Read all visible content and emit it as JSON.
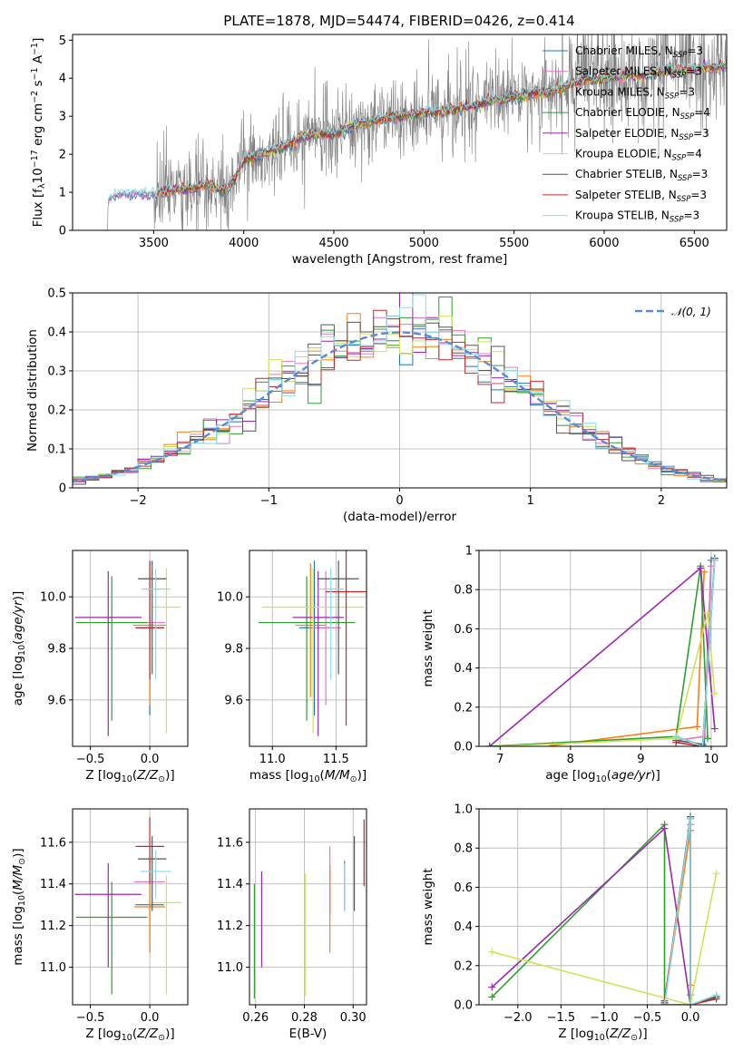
{
  "colors": {
    "Chabrier MILES": "#1f77b4",
    "Salpeter MILES": "#e377c2",
    "Kroupa MILES": "#ff7f0e",
    "Chabrier ELODIE": "#2ca02c",
    "Salpeter ELODIE": "#9c27b0",
    "Kroupa ELODIE": "#d4e157",
    "Chabrier STELIB": "#555555",
    "Salpeter STELIB": "#c62828",
    "Kroupa STELIB": "#80deea",
    "spectrum": "#808080",
    "gaussian": "#5b8bd6",
    "grid": "#b0b0b0"
  },
  "chart_data": [
    {
      "id": "spectrum",
      "type": "line",
      "title": "PLATE=1878, MJD=54474, FIBERID=0426, z=0.414",
      "xlabel": "wavelength [Angstrom, rest frame]",
      "ylabel": "Flux [fλ10⁻¹⁷ erg cm⁻² s⁻¹ A⁻¹]",
      "xlim": [
        3050,
        6680
      ],
      "ylim": [
        0,
        5.15
      ],
      "xticks": [
        3500,
        4000,
        4500,
        5000,
        5500,
        6000,
        6500
      ],
      "yticks": [
        0,
        1,
        2,
        3,
        4,
        5
      ],
      "grid": false,
      "legend_position": "top-right",
      "legend": [
        {
          "name": "Chabrier MILES, N_SSP=3",
          "text": "Chabrier MILES, N",
          "sub": "SSP",
          "tail": "=3"
        },
        {
          "name": "Salpeter MILES, N_SSP=3",
          "text": "Salpeter MILES, N",
          "sub": "SSP",
          "tail": "=3"
        },
        {
          "name": "Kroupa MILES, N_SSP=3",
          "text": "Kroupa MILES, N",
          "sub": "SSP",
          "tail": "=3"
        },
        {
          "name": "Chabrier ELODIE, N_SSP=4",
          "text": "Chabrier ELODIE, N",
          "sub": "SSP",
          "tail": "=4"
        },
        {
          "name": "Salpeter ELODIE, N_SSP=3",
          "text": "Salpeter ELODIE, N",
          "sub": "SSP",
          "tail": "=3"
        },
        {
          "name": "Kroupa ELODIE, N_SSP=4",
          "text": "Kroupa ELODIE, N",
          "sub": "SSP",
          "tail": "=4"
        },
        {
          "name": "Chabrier STELIB, N_SSP=3",
          "text": "Chabrier STELIB, N",
          "sub": "SSP",
          "tail": "=3"
        },
        {
          "name": "Salpeter STELIB, N_SSP=3",
          "text": "Salpeter STELIB, N",
          "sub": "SSP",
          "tail": "=3"
        },
        {
          "name": "Kroupa STELIB, N_SSP=3",
          "text": "Kroupa STELIB, N",
          "sub": "SSP",
          "tail": "=3"
        }
      ],
      "models": [
        "Chabrier MILES",
        "Salpeter MILES",
        "Kroupa MILES",
        "Chabrier ELODIE",
        "Salpeter ELODIE",
        "Kroupa ELODIE",
        "Chabrier STELIB",
        "Salpeter STELIB",
        "Kroupa STELIB"
      ],
      "model_start": [
        3250,
        3250,
        3520,
        3520,
        3520,
        3520,
        3520,
        3520,
        3250
      ],
      "continuum": {
        "x": [
          3240,
          3250,
          3300,
          3400,
          3500,
          3600,
          3700,
          3800,
          3900,
          3950,
          4000,
          4100,
          4200,
          4300,
          4400,
          4500,
          4600,
          4700,
          4800,
          4900,
          5000,
          5100,
          5200,
          5300,
          5400,
          5500,
          5600,
          5700,
          5800,
          5900,
          6000,
          6100,
          6200,
          6300,
          6400,
          6500,
          6680
        ],
        "y": [
          0,
          0.85,
          0.95,
          0.97,
          0.95,
          1.05,
          1.1,
          1.2,
          1.0,
          1.35,
          1.85,
          2.0,
          2.15,
          2.4,
          2.55,
          2.5,
          2.75,
          2.85,
          2.95,
          3.0,
          3.1,
          3.1,
          3.2,
          3.3,
          3.45,
          3.5,
          3.6,
          3.65,
          3.8,
          3.95,
          4.0,
          4.05,
          4.1,
          4.15,
          4.2,
          4.25,
          4.3
        ]
      },
      "noise_start": 3500,
      "noise_amplitude": 0.55
    },
    {
      "id": "residuals",
      "type": "line",
      "xlabel": "(data-model)/error",
      "ylabel": "Normed distribution",
      "xlim": [
        -2.5,
        2.5
      ],
      "ylim": [
        0,
        0.5
      ],
      "xticks": [
        -2,
        -1,
        0,
        1,
        2
      ],
      "yticks": [
        0,
        0.1,
        0.2,
        0.3,
        0.4,
        0.5
      ],
      "grid": true,
      "legend_position": "top-right",
      "legend": [
        {
          "name": "𝒩(0, 1)"
        }
      ],
      "bin_width": 0.1,
      "gaussian": {
        "mean": 0,
        "sigma": 1
      }
    },
    {
      "id": "age-vs-Z",
      "type": "scatter",
      "xlabel": "Z [log₁₀(Z/Z⊙)]",
      "ylabel": "age  [log₁₀(age/yr)]",
      "xlim": [
        -0.65,
        0.32
      ],
      "ylim": [
        9.42,
        10.18
      ],
      "xticks": [
        -0.5,
        0.0
      ],
      "yticks": [
        9.6,
        9.8,
        10.0
      ],
      "grid": true,
      "points": [
        {
          "model": "Chabrier MILES",
          "x": 0.0,
          "y": 9.88,
          "xerr": 0.12,
          "yerr": [
            0.34,
            0.26
          ]
        },
        {
          "model": "Salpeter MILES",
          "x": 0.0,
          "y": 9.9,
          "xerr": 0.13,
          "yerr": [
            0.27,
            0.22
          ]
        },
        {
          "model": "Kroupa MILES",
          "x": 0.0,
          "y": 9.89,
          "xerr": 0.14,
          "yerr": [
            0.31,
            0.24
          ]
        },
        {
          "model": "Chabrier ELODIE",
          "x": -0.32,
          "y": 9.9,
          "xerr": 0.3,
          "yerr": [
            0.38,
            0.18
          ]
        },
        {
          "model": "Salpeter ELODIE",
          "x": -0.35,
          "y": 9.92,
          "xerr": 0.28,
          "yerr": [
            0.46,
            0.18
          ]
        },
        {
          "model": "Kroupa ELODIE",
          "x": 0.14,
          "y": 9.96,
          "xerr": 0.12,
          "yerr": [
            0.49,
            0.15
          ]
        },
        {
          "model": "Chabrier STELIB",
          "x": 0.02,
          "y": 10.07,
          "xerr": 0.12,
          "yerr": [
            0.37,
            0.07
          ]
        },
        {
          "model": "Salpeter STELIB",
          "x": 0.0,
          "y": 9.88,
          "xerr": 0.12,
          "yerr": [
            0.2,
            0.26
          ]
        },
        {
          "model": "Kroupa STELIB",
          "x": 0.05,
          "y": 10.03,
          "xerr": 0.12,
          "yerr": [
            0.35,
            0.08
          ]
        }
      ]
    },
    {
      "id": "age-vs-mass",
      "type": "scatter",
      "xlabel": "mass [log₁₀(M/M⊙)]",
      "ylabel": "",
      "xlim": [
        10.82,
        11.74
      ],
      "ylim": [
        9.42,
        10.18
      ],
      "xticks": [
        11.0,
        11.5
      ],
      "yticks": [
        9.6,
        9.8,
        10.0
      ],
      "grid": true,
      "points": [
        {
          "model": "Chabrier MILES",
          "x": 11.33,
          "y": 9.88,
          "xerr": 0.12,
          "yerr": [
            0.34,
            0.26
          ]
        },
        {
          "model": "Salpeter MILES",
          "x": 11.42,
          "y": 9.88,
          "xerr": 0.12,
          "yerr": [
            0.3,
            0.22
          ]
        },
        {
          "model": "Kroupa MILES",
          "x": 11.3,
          "y": 9.89,
          "xerr": 0.12,
          "yerr": [
            0.28,
            0.24
          ]
        },
        {
          "model": "Chabrier ELODIE",
          "x": 11.27,
          "y": 9.9,
          "xerr": 0.38,
          "yerr": [
            0.38,
            0.18
          ]
        },
        {
          "model": "Salpeter ELODIE",
          "x": 11.36,
          "y": 9.92,
          "xerr": 0.2,
          "yerr": [
            0.46,
            0.18
          ]
        },
        {
          "model": "Kroupa ELODIE",
          "x": 11.32,
          "y": 9.96,
          "xerr": 0.4,
          "yerr": [
            0.49,
            0.15
          ]
        },
        {
          "model": "Chabrier STELIB",
          "x": 11.52,
          "y": 10.07,
          "xerr": 0.16,
          "yerr": [
            0.37,
            0.07
          ]
        },
        {
          "model": "Salpeter STELIB",
          "x": 11.58,
          "y": 10.02,
          "xerr": 0.16,
          "yerr": [
            0.52,
            0.25
          ]
        },
        {
          "model": "Kroupa STELIB",
          "x": 11.46,
          "y": 10.03,
          "xerr": 0.1,
          "yerr": [
            0.35,
            0.08
          ]
        }
      ]
    },
    {
      "id": "massweight-vs-age",
      "type": "line",
      "xlabel": "age  [log₁₀(age/yr)]",
      "ylabel": "mass weight",
      "xlim": [
        6.7,
        10.22
      ],
      "ylim": [
        0,
        1.0
      ],
      "xticks": [
        7,
        8,
        9,
        10
      ],
      "yticks": [
        0,
        0.2,
        0.4,
        0.6,
        0.8,
        1.0
      ],
      "grid": true,
      "series": [
        {
          "model": "Chabrier MILES",
          "x": [
            9.5,
            9.9,
            10.0
          ],
          "y": [
            0.05,
            0.0,
            0.95
          ]
        },
        {
          "model": "Salpeter MILES",
          "x": [
            9.5,
            9.9,
            10.0
          ],
          "y": [
            0.03,
            0.05,
            0.92
          ]
        },
        {
          "model": "Kroupa MILES",
          "x": [
            7.75,
            9.8,
            9.9
          ],
          "y": [
            0.005,
            0.1,
            0.89
          ]
        },
        {
          "model": "Chabrier ELODIE",
          "x": [
            6.85,
            9.5,
            9.85,
            9.95
          ],
          "y": [
            0.0,
            0.05,
            0.92,
            0.04
          ]
        },
        {
          "model": "Salpeter ELODIE",
          "x": [
            6.85,
            9.85,
            10.05
          ],
          "y": [
            0.0,
            0.91,
            0.09
          ]
        },
        {
          "model": "Kroupa ELODIE",
          "x": [
            7.0,
            9.5,
            9.95,
            10.05
          ],
          "y": [
            0.0,
            0.04,
            0.68,
            0.27
          ]
        },
        {
          "model": "Chabrier STELIB",
          "x": [
            9.5,
            9.88,
            10.05
          ],
          "y": [
            0.03,
            0.01,
            0.96
          ]
        },
        {
          "model": "Salpeter STELIB",
          "x": [
            9.5,
            9.88,
            10.05
          ],
          "y": [
            0.02,
            0.0,
            0.95
          ]
        },
        {
          "model": "Kroupa STELIB",
          "x": [
            9.5,
            9.88,
            10.05
          ],
          "y": [
            0.05,
            0.0,
            0.95
          ]
        }
      ]
    },
    {
      "id": "mass-vs-Z",
      "type": "scatter",
      "xlabel": "Z [log₁₀(Z/Z⊙)]",
      "ylabel": "mass [log₁₀(M/M⊙)]",
      "xlim": [
        -0.65,
        0.32
      ],
      "ylim": [
        10.82,
        11.76
      ],
      "xticks": [
        -0.5,
        0.0
      ],
      "yticks": [
        11.0,
        11.2,
        11.4,
        11.6
      ],
      "grid": true,
      "points": [
        {
          "model": "Chabrier MILES",
          "x": 0.0,
          "y": 11.3,
          "xerr": 0.12,
          "yerr": [
            0.23,
            0.22
          ]
        },
        {
          "model": "Salpeter MILES",
          "x": 0.0,
          "y": 11.41,
          "xerr": 0.13,
          "yerr": [
            0.16,
            0.15
          ]
        },
        {
          "model": "Kroupa MILES",
          "x": 0.0,
          "y": 11.29,
          "xerr": 0.13,
          "yerr": [
            0.22,
            0.2
          ]
        },
        {
          "model": "Chabrier ELODIE",
          "x": -0.32,
          "y": 11.24,
          "xerr": 0.3,
          "yerr": [
            0.37,
            0.17
          ]
        },
        {
          "model": "Salpeter ELODIE",
          "x": -0.35,
          "y": 11.35,
          "xerr": 0.28,
          "yerr": [
            0.35,
            0.15
          ]
        },
        {
          "model": "Kroupa ELODIE",
          "x": 0.14,
          "y": 11.31,
          "xerr": 0.13,
          "yerr": [
            0.44,
            0.13
          ]
        },
        {
          "model": "Chabrier STELIB",
          "x": 0.02,
          "y": 11.52,
          "xerr": 0.12,
          "yerr": [
            0.25,
            0.11
          ]
        },
        {
          "model": "Salpeter STELIB",
          "x": 0.0,
          "y": 11.58,
          "xerr": 0.12,
          "yerr": [
            0.18,
            0.14
          ]
        },
        {
          "model": "Kroupa STELIB",
          "x": 0.05,
          "y": 11.46,
          "xerr": 0.13,
          "yerr": [
            0.13,
            0.1
          ]
        }
      ]
    },
    {
      "id": "mass-vs-ebv",
      "type": "scatter",
      "xlabel": "E(B-V)",
      "ylabel": "",
      "xlim": [
        0.2575,
        0.3055
      ],
      "ylim": [
        10.82,
        11.76
      ],
      "xticks": [
        0.26,
        0.28,
        0.3
      ],
      "yticks": [
        11.0,
        11.2,
        11.4,
        11.6
      ],
      "grid": true,
      "points": [
        {
          "model": "Chabrier MILES",
          "x": 0.2965,
          "y": 11.39,
          "xerr": 0,
          "yerr": [
            0.12,
            0.12
          ]
        },
        {
          "model": "Salpeter MILES",
          "x": 0.2905,
          "y": 11.42,
          "xerr": 0,
          "yerr": [
            0.17,
            0.16
          ]
        },
        {
          "model": "Kroupa MILES",
          "x": 0.2905,
          "y": 11.28,
          "xerr": 0,
          "yerr": [
            0.21,
            0.21
          ]
        },
        {
          "model": "Chabrier ELODIE",
          "x": 0.2595,
          "y": 11.11,
          "xerr": 0,
          "yerr": [
            0.26,
            0.29
          ]
        },
        {
          "model": "Salpeter ELODIE",
          "x": 0.2625,
          "y": 11.23,
          "xerr": 0,
          "yerr": [
            0.23,
            0.23
          ]
        },
        {
          "model": "Kroupa ELODIE",
          "x": 0.2805,
          "y": 11.16,
          "xerr": 0,
          "yerr": [
            0.3,
            0.29
          ]
        },
        {
          "model": "Chabrier STELIB",
          "x": 0.3005,
          "y": 11.45,
          "xerr": 0,
          "yerr": [
            0.18,
            0.18
          ]
        },
        {
          "model": "Salpeter STELIB",
          "x": 0.3045,
          "y": 11.55,
          "xerr": 0,
          "yerr": [
            0.16,
            0.16
          ]
        },
        {
          "model": "Kroupa STELIB",
          "x": 0.2965,
          "y": 11.38,
          "xerr": 0,
          "yerr": [
            0.11,
            0.12
          ]
        }
      ]
    },
    {
      "id": "massweight-vs-Z",
      "type": "line",
      "xlabel": "Z [log₁₀(Z/Z⊙)]",
      "ylabel": "mass weight",
      "xlim": [
        -2.45,
        0.42
      ],
      "ylim": [
        0,
        1.0
      ],
      "xticks": [
        -2.0,
        -1.5,
        -1.0,
        -0.5,
        0.0
      ],
      "yticks": [
        0,
        0.2,
        0.4,
        0.6,
        0.8,
        1.0
      ],
      "grid": true,
      "series": [
        {
          "model": "Chabrier MILES",
          "x": [
            -0.3,
            0.0,
            0.0
          ],
          "y": [
            0.0,
            0.95,
            0.05
          ]
        },
        {
          "model": "Salpeter MILES",
          "x": [
            -0.3,
            0.0,
            0.0
          ],
          "y": [
            0.02,
            0.92,
            0.05
          ]
        },
        {
          "model": "Kroupa MILES",
          "x": [
            -0.3,
            0.0,
            0.0
          ],
          "y": [
            0.01,
            0.89,
            0.1
          ]
        },
        {
          "model": "Chabrier ELODIE",
          "x": [
            -2.3,
            -0.3,
            -0.3,
            0.0,
            0.3
          ],
          "y": [
            0.04,
            0.92,
            0.0,
            0.0,
            0.04
          ]
        },
        {
          "model": "Salpeter ELODIE",
          "x": [
            -2.3,
            -0.3,
            0.0
          ],
          "y": [
            0.09,
            0.9,
            0.0
          ]
        },
        {
          "model": "Kroupa ELODIE",
          "x": [
            -2.3,
            0.0,
            0.3
          ],
          "y": [
            0.27,
            0.0,
            0.67
          ]
        },
        {
          "model": "Chabrier STELIB",
          "x": [
            -0.3,
            0.0,
            0.0,
            0.3
          ],
          "y": [
            0.01,
            0.96,
            0.0,
            0.04
          ]
        },
        {
          "model": "Salpeter STELIB",
          "x": [
            -0.3,
            0.0,
            0.0,
            0.3
          ],
          "y": [
            0.02,
            0.95,
            0.0,
            0.03
          ]
        },
        {
          "model": "Kroupa STELIB",
          "x": [
            -0.3,
            0.0,
            0.0,
            0.3
          ],
          "y": [
            0.0,
            0.95,
            0.0,
            0.05
          ]
        }
      ]
    }
  ]
}
